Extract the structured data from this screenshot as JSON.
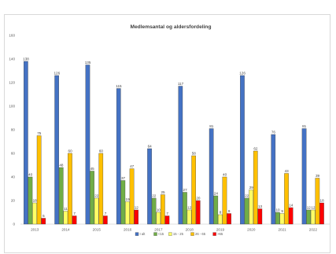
{
  "chart_data": {
    "type": "bar",
    "title": "Medlemsantal og aldersfordeling",
    "xlabel": "",
    "ylabel": "",
    "categories": [
      "2013",
      "2014",
      "2015",
      "2016",
      "2017",
      "2018",
      "2019",
      "2020",
      "2021",
      "2022"
    ],
    "ylim": [
      0,
      160
    ],
    "yticks": [
      0,
      20,
      40,
      60,
      80,
      100,
      120,
      140,
      160
    ],
    "grid": false,
    "legend_position": "bottom",
    "series": [
      {
        "name": "I alt",
        "color": "#4472c4",
        "values": [
          138,
          126,
          135,
          115,
          64,
          117,
          81,
          126,
          76,
          81
        ]
      },
      {
        "name": "<15",
        "color": "#70ad47",
        "values": [
          40,
          48,
          45,
          37,
          22,
          27,
          24,
          22,
          10,
          12
        ]
      },
      {
        "name": "15 - 25",
        "color": "#ffff66",
        "values": [
          18,
          11,
          22,
          19,
          10,
          12,
          8,
          29,
          9,
          12
        ]
      },
      {
        "name": "26 - 65",
        "color": "#ffc000",
        "values": [
          75,
          60,
          60,
          47,
          25,
          58,
          40,
          62,
          43,
          39
        ]
      },
      {
        "name": ">65",
        "color": "#ff0000",
        "values": [
          5,
          7,
          7,
          12,
          7,
          20,
          9,
          13,
          14,
          18
        ]
      }
    ]
  }
}
